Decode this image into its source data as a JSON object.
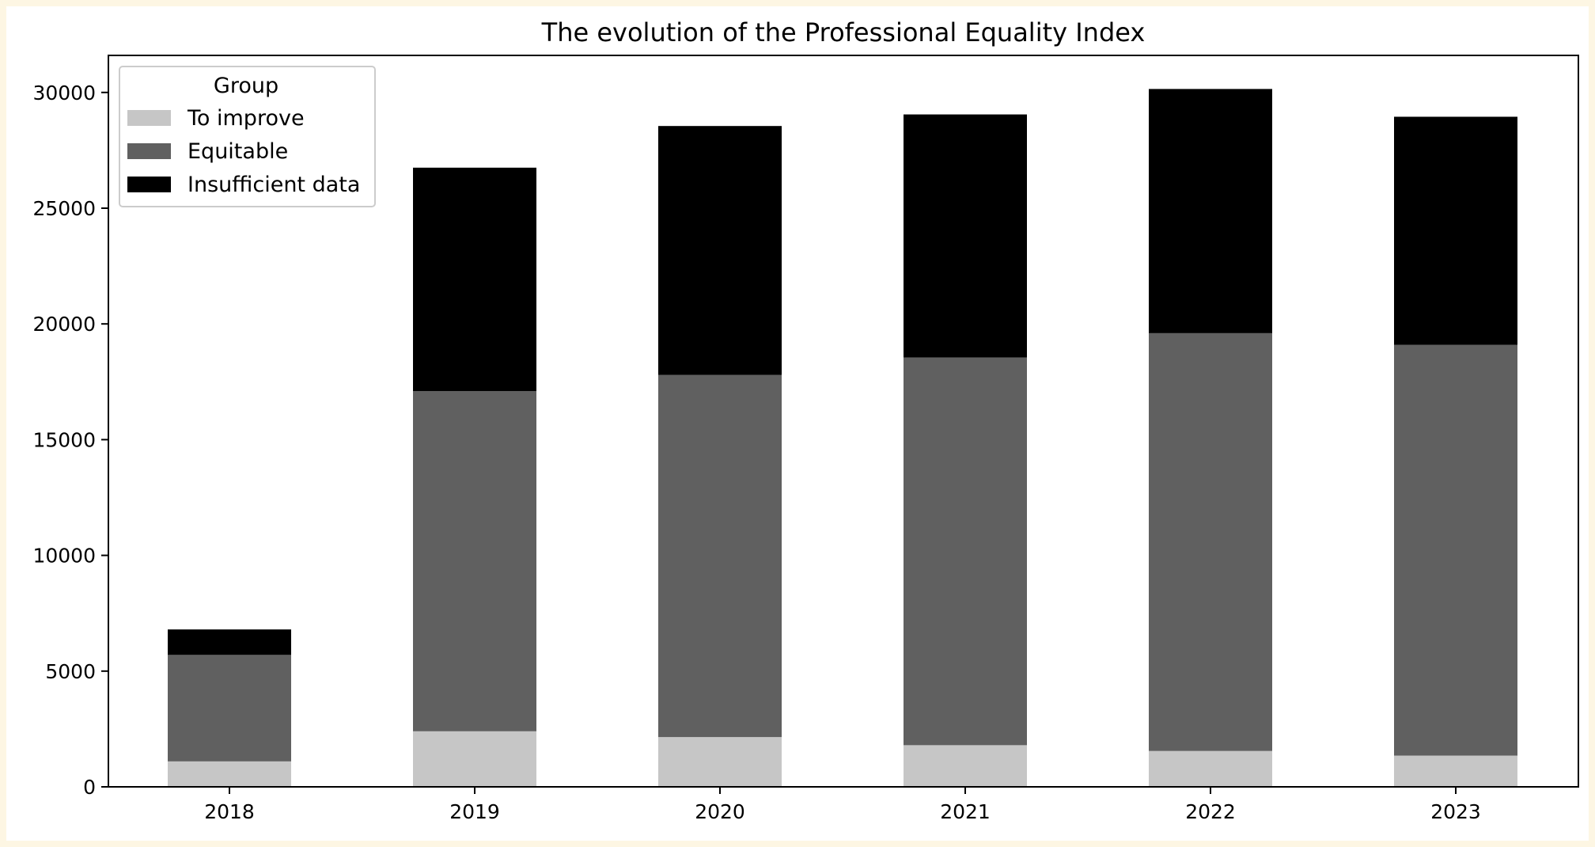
{
  "chart_data": {
    "type": "bar",
    "stacked": true,
    "title": "The evolution of the Professional Equality Index",
    "xlabel": "",
    "ylabel": "",
    "categories": [
      "2018",
      "2019",
      "2020",
      "2021",
      "2022",
      "2023"
    ],
    "series": [
      {
        "name": "To improve",
        "color": "#c6c6c6",
        "values": [
          1100,
          2400,
          2150,
          1800,
          1550,
          1350
        ]
      },
      {
        "name": "Equitable",
        "color": "#606060",
        "values": [
          4600,
          14700,
          15650,
          16750,
          18050,
          17750
        ]
      },
      {
        "name": "Insufficient data",
        "color": "#000000",
        "values": [
          1100,
          9650,
          10750,
          10500,
          10550,
          9850
        ]
      }
    ],
    "ylim": [
      0,
      31600
    ],
    "yticks": [
      0,
      5000,
      10000,
      15000,
      20000,
      25000,
      30000
    ],
    "legend": {
      "title": "Group",
      "placement": "top-left"
    },
    "grid": false,
    "background": "#ffffff",
    "page_background": "#fdf6e3"
  }
}
